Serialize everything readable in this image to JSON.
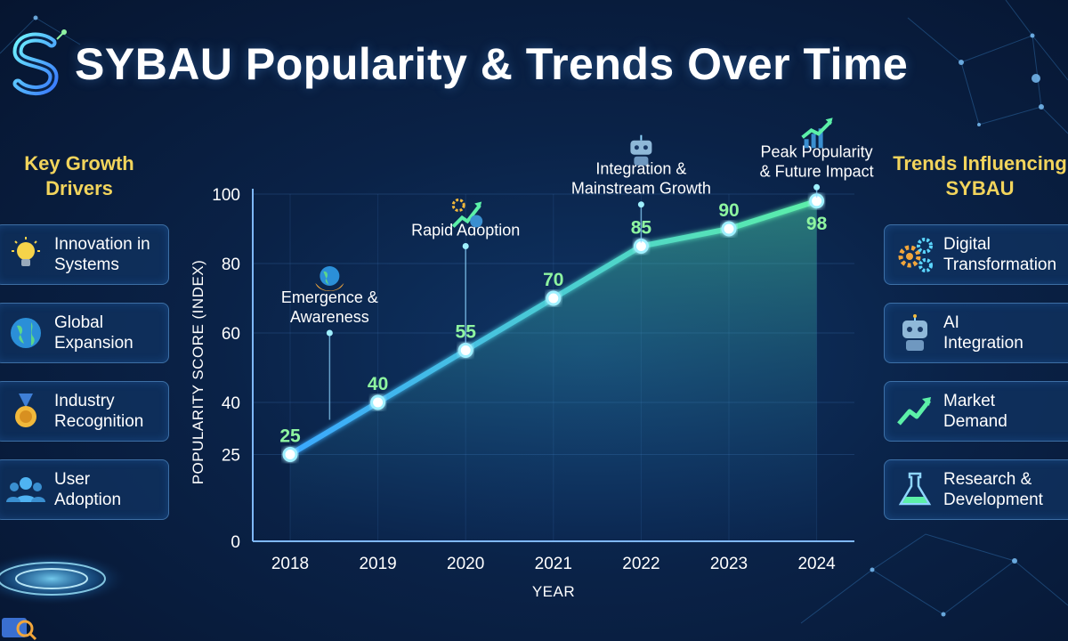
{
  "header": {
    "title": "SYBAU Popularity & Trends Over Time",
    "logo_icon": "sybau-s-logo-icon"
  },
  "left_panel": {
    "heading": "Key Growth\nDrivers",
    "items": [
      {
        "label": "Innovation in\nSystems",
        "icon": "lightbulb-icon"
      },
      {
        "label": "Global\nExpansion",
        "icon": "globe-icon"
      },
      {
        "label": "Industry\nRecognition",
        "icon": "medal-icon"
      },
      {
        "label": "User\nAdoption",
        "icon": "users-icon"
      }
    ]
  },
  "right_panel": {
    "heading": "Trends Influencing\nSYBAU",
    "items": [
      {
        "label": "Digital\nTransformation",
        "icon": "gears-icon"
      },
      {
        "label": "AI\nIntegration",
        "icon": "robot-icon"
      },
      {
        "label": "Market\nDemand",
        "icon": "trend-arrow-icon"
      },
      {
        "label": "Research &\nDevelopment",
        "icon": "flask-icon"
      }
    ]
  },
  "chart_data": {
    "type": "line",
    "x": [
      "2018",
      "2019",
      "2020",
      "2021",
      "2022",
      "2023",
      "2024"
    ],
    "series": [
      {
        "values": [
          25,
          40,
          55,
          70,
          85,
          90,
          98
        ]
      }
    ],
    "data_labels": [
      "25",
      "40",
      "55",
      "70",
      "85",
      "90",
      "98"
    ],
    "xlabel": "YEAR",
    "ylabel": "POPULARITY SCORE (INDEX)",
    "y_ticks": [
      0,
      25,
      40,
      60,
      80,
      100
    ],
    "ylim": [
      0,
      100
    ],
    "grid": true,
    "legend": "none",
    "line_color": "#5cf0a8",
    "annotations": [
      {
        "text": "Emergence &\nAwareness",
        "icon": "globe-hands-icon",
        "x_value": 2018.45,
        "y_value": 60
      },
      {
        "text": "Rapid Adoption",
        "icon": "growth-gear-icon",
        "x_value": 2020.0,
        "y_value": 85
      },
      {
        "text": "Integration &\nMainstream Growth",
        "icon": "robot-icon",
        "x_value": 2022.0,
        "y_value": 97
      },
      {
        "text": "Peak Popularity\n& Future Impact",
        "icon": "rising-chart-icon",
        "x_value": 2024.0,
        "y_value": 103
      }
    ]
  }
}
